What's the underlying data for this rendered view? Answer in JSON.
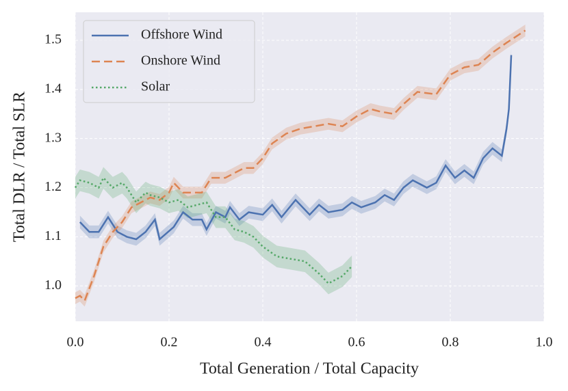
{
  "chart_data": {
    "type": "line",
    "xlabel": "Total Generation / Total Capacity",
    "ylabel": "Total DLR / Total SLR",
    "xlim": [
      0,
      1
    ],
    "ylim": [
      0.928,
      1.557
    ],
    "xticks": [
      {
        "value": 0,
        "label": "0.0"
      },
      0.2,
      0.4,
      0.6,
      0.8,
      {
        "value": 1,
        "label": "1.0"
      }
    ],
    "yticks": [
      {
        "value": 1,
        "label": "1.0"
      },
      1.1,
      1.2,
      1.3,
      1.4,
      1.5
    ],
    "grid": true,
    "legend": "upper-left",
    "series": [
      {
        "name": "Offshore Wind",
        "color": "#4c72b0",
        "dash": "solid",
        "ci": 0.013,
        "x": [
          0.01,
          0.03,
          0.05,
          0.07,
          0.09,
          0.11,
          0.13,
          0.15,
          0.17,
          0.18,
          0.21,
          0.23,
          0.25,
          0.27,
          0.28,
          0.3,
          0.32,
          0.33,
          0.35,
          0.37,
          0.4,
          0.42,
          0.44,
          0.47,
          0.5,
          0.52,
          0.54,
          0.57,
          0.59,
          0.61,
          0.64,
          0.66,
          0.68,
          0.7,
          0.72,
          0.75,
          0.77,
          0.79,
          0.81,
          0.83,
          0.85,
          0.87,
          0.89,
          0.91,
          0.92,
          0.925,
          0.93
        ],
        "values": [
          1.13,
          1.11,
          1.11,
          1.14,
          1.11,
          1.1,
          1.095,
          1.11,
          1.135,
          1.095,
          1.12,
          1.15,
          1.135,
          1.135,
          1.115,
          1.15,
          1.14,
          1.16,
          1.135,
          1.15,
          1.145,
          1.165,
          1.14,
          1.175,
          1.145,
          1.165,
          1.15,
          1.155,
          1.17,
          1.16,
          1.17,
          1.185,
          1.175,
          1.2,
          1.215,
          1.2,
          1.21,
          1.245,
          1.22,
          1.235,
          1.22,
          1.26,
          1.28,
          1.265,
          1.32,
          1.36,
          1.47
        ]
      },
      {
        "name": "Onshore Wind",
        "color": "#dd8452",
        "dash": "dashed",
        "ci": 0.012,
        "x": [
          0.0,
          0.01,
          0.02,
          0.04,
          0.06,
          0.08,
          0.1,
          0.12,
          0.14,
          0.16,
          0.18,
          0.2,
          0.21,
          0.23,
          0.25,
          0.27,
          0.29,
          0.32,
          0.34,
          0.36,
          0.38,
          0.4,
          0.42,
          0.45,
          0.48,
          0.51,
          0.54,
          0.57,
          0.6,
          0.63,
          0.65,
          0.68,
          0.7,
          0.73,
          0.77,
          0.8,
          0.83,
          0.86,
          0.89,
          0.92,
          0.96
        ],
        "values": [
          0.975,
          0.98,
          0.97,
          1.02,
          1.08,
          1.11,
          1.13,
          1.16,
          1.17,
          1.18,
          1.175,
          1.19,
          1.21,
          1.19,
          1.19,
          1.19,
          1.22,
          1.22,
          1.23,
          1.24,
          1.24,
          1.26,
          1.29,
          1.31,
          1.32,
          1.325,
          1.33,
          1.325,
          1.345,
          1.36,
          1.355,
          1.35,
          1.37,
          1.395,
          1.39,
          1.43,
          1.445,
          1.45,
          1.475,
          1.495,
          1.52
        ]
      },
      {
        "name": "Solar",
        "color": "#55a868",
        "dash": "dotted",
        "ci": 0.022,
        "x": [
          0.0,
          0.01,
          0.03,
          0.05,
          0.06,
          0.08,
          0.1,
          0.11,
          0.13,
          0.15,
          0.16,
          0.18,
          0.2,
          0.22,
          0.24,
          0.26,
          0.28,
          0.3,
          0.32,
          0.34,
          0.36,
          0.38,
          0.4,
          0.43,
          0.46,
          0.49,
          0.52,
          0.54,
          0.57,
          0.59
        ],
        "values": [
          1.2,
          1.215,
          1.21,
          1.2,
          1.22,
          1.2,
          1.21,
          1.2,
          1.17,
          1.19,
          1.185,
          1.18,
          1.17,
          1.175,
          1.16,
          1.165,
          1.17,
          1.14,
          1.14,
          1.115,
          1.11,
          1.1,
          1.08,
          1.06,
          1.055,
          1.05,
          1.025,
          1.005,
          1.02,
          1.04
        ]
      }
    ]
  }
}
